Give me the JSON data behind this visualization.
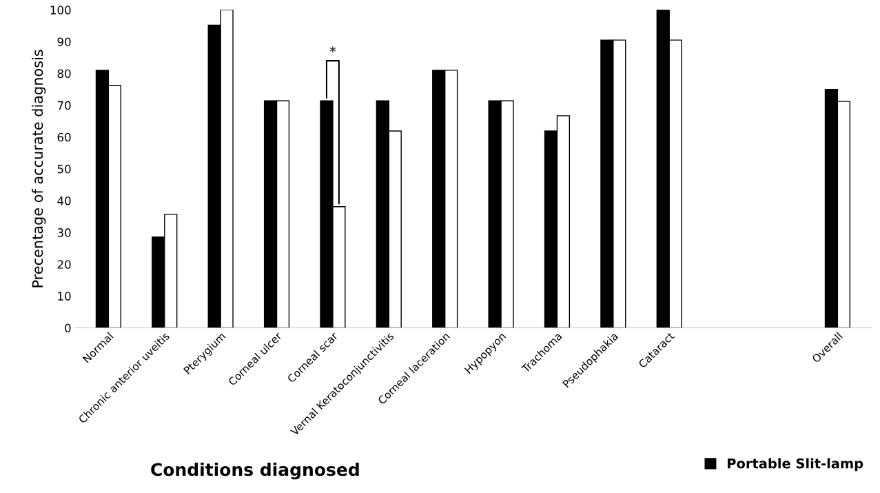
{
  "chart_data": {
    "type": "bar",
    "xlabel": "Conditions diagnosed",
    "ylabel": "Precentage of accurate diagnosis",
    "categories": [
      "Normal",
      "Chronic anterior uveitis",
      "Pterygium",
      "Corneal ulcer",
      "Corneal scar",
      "Vernal Keratoconjunctivitis",
      "Corneal laceration",
      "Hypopyon",
      "Trachoma",
      "Pseudophakia",
      "Cataract",
      null,
      null,
      "Overall"
    ],
    "series": [
      {
        "name": "Portable Slit-lamp",
        "color": "#000000",
        "values": [
          81,
          28.6,
          95.2,
          71.4,
          71.4,
          71.4,
          81,
          71.4,
          61.9,
          90.5,
          100,
          null,
          null,
          75
        ]
      },
      {
        "color": "#ffffff",
        "values": [
          76.2,
          35.7,
          100,
          71.4,
          38.1,
          61.9,
          81,
          71.4,
          66.7,
          90.5,
          90.5,
          null,
          null,
          71.2
        ]
      }
    ],
    "ylim": [
      0,
      100
    ],
    "yticks": [
      0,
      10,
      20,
      30,
      40,
      50,
      60,
      70,
      80,
      90,
      100
    ],
    "grid": false,
    "legend": "bottom right",
    "annotations": [
      "*"
    ]
  }
}
